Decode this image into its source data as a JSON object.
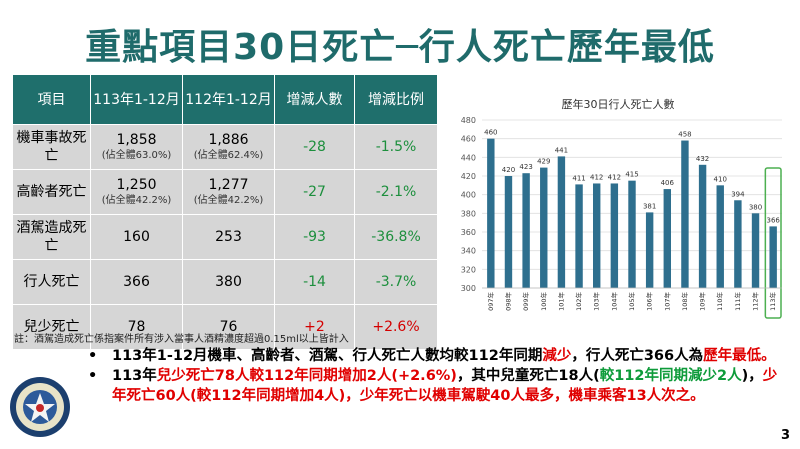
{
  "title": "重點項目30日死亡─行人死亡歷年最低",
  "table": {
    "headers": [
      "項目",
      "113年1-12月",
      "112年1-12月",
      "增減人數",
      "增減比例"
    ],
    "rows": [
      {
        "label": "機車事故死亡",
        "v113": "1,858",
        "v113_sub": "(佔全體63.0%)",
        "v112": "1,886",
        "v112_sub": "(佔全體62.4%)",
        "diff": "-28",
        "ratio": "-1.5%"
      },
      {
        "label": "高齡者死亡",
        "v113": "1,250",
        "v113_sub": "(佔全體42.2%)",
        "v112": "1,277",
        "v112_sub": "(佔全體42.2%)",
        "diff": "-27",
        "ratio": "-2.1%"
      },
      {
        "label": "酒駕造成死亡",
        "v113": "160",
        "v113_sub": "",
        "v112": "253",
        "v112_sub": "",
        "diff": "-93",
        "ratio": "-36.8%"
      },
      {
        "label": "行人死亡",
        "v113": "366",
        "v113_sub": "",
        "v112": "380",
        "v112_sub": "",
        "diff": "-14",
        "ratio": "-3.7%"
      },
      {
        "label": "兒少死亡",
        "v113": "78",
        "v113_sub": "",
        "v112": "76",
        "v112_sub": "",
        "diff": "+2",
        "ratio": "+2.6%"
      }
    ]
  },
  "note": "註：酒駕造成死亡係指案件所有涉入當事人酒精濃度超過0.15ml以上皆計入",
  "chart_data": {
    "type": "bar",
    "title": "歷年30日行人死亡人數",
    "categories": [
      "097年",
      "098年",
      "099年",
      "100年",
      "101年",
      "102年",
      "103年",
      "104年",
      "105年",
      "106年",
      "107年",
      "108年",
      "109年",
      "110年",
      "111年",
      "112年",
      "113年"
    ],
    "values": [
      460,
      420,
      423,
      429,
      441,
      411,
      412,
      412,
      415,
      381,
      406,
      458,
      432,
      410,
      394,
      380,
      366
    ],
    "ylim": [
      300,
      480
    ],
    "yticks": [
      300,
      320,
      340,
      360,
      380,
      400,
      420,
      440,
      460,
      480
    ],
    "xlabel": "",
    "ylabel": "",
    "grid": true,
    "colors": {
      "bar": "#2e6f8e",
      "highlight_box": "#4caf50"
    }
  },
  "bullets": {
    "b1_p1": "113年1-12月機車、高齡者、酒駕、行人死亡人數均較112年同期",
    "b1_p2": "減少",
    "b1_p3": "，行人死亡366人為",
    "b1_p4": "歷年最低。",
    "b2_p1": "113年",
    "b2_p2": "兒少死亡78人較112年同期增加2人(+2.6%)",
    "b2_p3": "，其中兒童死亡18人(",
    "b2_p4": "較112年同期減少2人",
    "b2_p5": ")，",
    "b2_p6": "少年死亡60人(較112年同期增加4人)",
    "b2_p7": "，少年死亡以機車駕駛40人最多，機車乘客13人次之。"
  },
  "page_number": "3"
}
